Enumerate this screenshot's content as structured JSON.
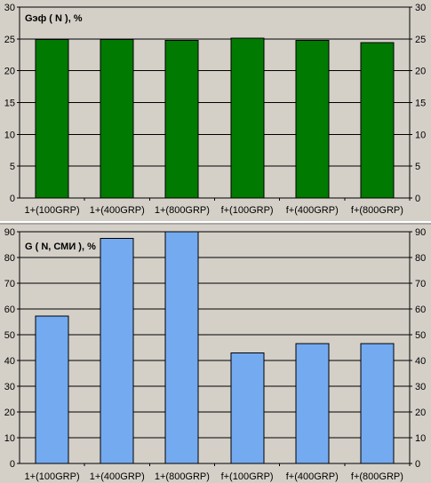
{
  "colors": {
    "background": "#d4d0c8",
    "separator": "#ffffff",
    "top_bar_fill": "#007a00",
    "bottom_bar_fill": "#74aaf0",
    "bar_stroke": "#000000",
    "grid": "#000000"
  },
  "chart_data": [
    {
      "type": "bar",
      "title": "Gэф ( N ), %",
      "categories": [
        "1+(100GRP)",
        "1+(400GRP)",
        "1+(800GRP)",
        "f+(100GRP)",
        "f+(400GRP)",
        "f+(800GRP)"
      ],
      "values": [
        24.9,
        24.9,
        24.8,
        25.1,
        24.8,
        24.4
      ],
      "ylim": [
        0,
        30
      ],
      "yticks": [
        0,
        5,
        10,
        15,
        20,
        25,
        30
      ],
      "grid": true,
      "right_axis": true
    },
    {
      "type": "bar",
      "title": "G ( N, СМИ ), %",
      "categories": [
        "1+(100GRP)",
        "1+(400GRP)",
        "1+(800GRP)",
        "f+(100GRP)",
        "f+(400GRP)",
        "f+(800GRP)"
      ],
      "values": [
        57.3,
        87.5,
        90,
        43,
        46.5,
        46.5
      ],
      "ylim": [
        0,
        90
      ],
      "yticks": [
        0,
        10,
        20,
        30,
        40,
        50,
        60,
        70,
        80,
        90
      ],
      "grid": true,
      "right_axis": true
    }
  ]
}
